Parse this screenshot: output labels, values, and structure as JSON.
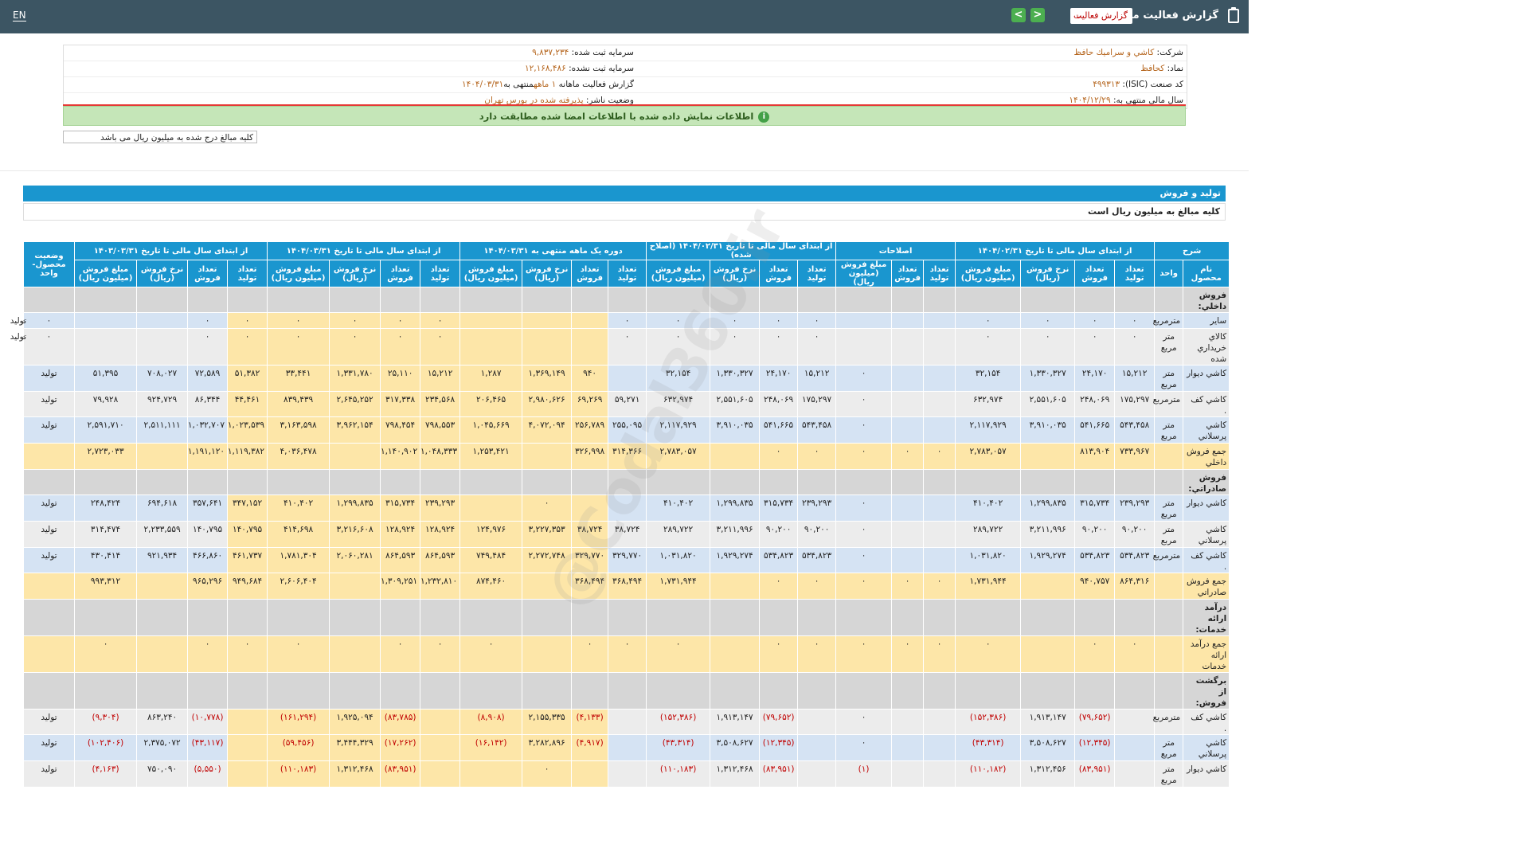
{
  "topbar": {
    "lang": "EN",
    "title": "گزارش فعالیت ماهانه",
    "select_value": "گزارش فعالیت",
    "prev_glyph": "<",
    "next_glyph": ">"
  },
  "info": {
    "company_label": "شرکت:",
    "company": "كاشي و سراميك حافظ",
    "symbol_label": "نماد:",
    "symbol": "کحافظ",
    "isic_label": "کد صنعت (ISIC):",
    "isic": "۴۹۹۳۱۳",
    "fy_label": "سال مالی منتهی به:",
    "fy": "۱۴۰۴/۱۲/۲۹",
    "cap_label": "سرمایه ثبت شده:",
    "cap": "۹,۸۳۷,۲۳۴",
    "uncap_label": "سرمایه ثبت نشده:",
    "uncap": "۱۲,۱۶۸,۴۸۶",
    "report_label": "گزارش فعالیت ماهانه",
    "report_val": "۱ ماهه",
    "report_mid": "منتهی به",
    "report_date": "۱۴۰۴/۰۳/۳۱",
    "status_label": "وضعیت ناشر:",
    "status": "پذیرفته شده در بورس تهران"
  },
  "notice": "اطلاعات نمایش داده شده با اطلاعات امضا شده مطابقت دارد",
  "unit_note": "کلیه مبالغ درج شده به میلیون ریال می باشد",
  "section": {
    "title": "تولید و فروش",
    "subtitle": "کلیه مبالغ به میلیون ریال است"
  },
  "watermark": "@Codal360.ir",
  "table": {
    "groups": [
      "شرح",
      "از ابتدای سال مالی تا تاریخ ۱۴۰۴/۰۲/۳۱",
      "اصلاحات",
      "از ابتدای سال مالی تا تاریخ ۱۴۰۴/۰۲/۳۱ (اصلاح شده)",
      "دوره یک ماهه منتهی به ۱۴۰۴/۰۳/۳۱",
      "از ابتدای سال مالی تا تاریخ ۱۴۰۴/۰۳/۳۱",
      "از ابتدای سال مالی تا تاریخ ۱۴۰۳/۰۳/۳۱",
      "وضعیت محصول-واحد"
    ],
    "subheaders": {
      "name": "نام محصول",
      "unit": "واحد",
      "prod": "تعداد تولید",
      "sales": "تعداد فروش",
      "rate": "نرخ فروش (ریال)",
      "amount": "مبلغ فروش (میلیون ریال)"
    },
    "rows": [
      {
        "t": "sect",
        "name": "فروش داخلي:"
      },
      {
        "t": "item",
        "bg": "blue",
        "name": "ساير",
        "unit": "مترمربع",
        "v": [
          "٠",
          "٠",
          "٠",
          "٠",
          "",
          "",
          "",
          "٠",
          "٠",
          "٠",
          "٠",
          "٠",
          "",
          "",
          "",
          "٠",
          "٠",
          "٠",
          "٠",
          "٠",
          "٠",
          "",
          "",
          "٠",
          "٠"
        ],
        "status": "تولید"
      },
      {
        "t": "item",
        "bg": "grey",
        "name": "كالاي خريداري شده",
        "unit": "متر مربع",
        "v": [
          "٠",
          "٠",
          "٠",
          "٠",
          "",
          "",
          "",
          "٠",
          "٠",
          "٠",
          "٠",
          "٠",
          "",
          "",
          "",
          "٠",
          "٠",
          "٠",
          "٠",
          "٠",
          "٠",
          "",
          "",
          "٠",
          "٠"
        ],
        "status": "تولید"
      },
      {
        "t": "item",
        "bg": "blue",
        "name": "كاشي ديوار",
        "unit": "متر مربع",
        "v": [
          "۱۵,۲۱۲",
          "۲۴,۱۷۰",
          "۱,۳۳۰,۳۲۷",
          "۳۲,۱۵۴",
          "",
          "",
          "٠",
          "۱۵,۲۱۲",
          "۲۴,۱۷۰",
          "۱,۳۳۰,۳۲۷",
          "۳۲,۱۵۴",
          "",
          "۹۴۰",
          "۱,۳۶۹,۱۴۹",
          "۱,۲۸۷",
          "۱۵,۲۱۲",
          "۲۵,۱۱۰",
          "۱,۳۳۱,۷۸۰",
          "۳۳,۴۴۱",
          "۵۱,۳۸۲",
          "۷۲,۵۸۹",
          "۷۰۸,۰۲۷",
          "۵۱,۳۹۵"
        ],
        "status": "تولید"
      },
      {
        "t": "item",
        "bg": "grey",
        "name": "كاشي كف .",
        "unit": "مترمربع",
        "v": [
          "۱۷۵,۲۹۷",
          "۲۴۸,۰۶۹",
          "۲,۵۵۱,۶۰۵",
          "۶۳۲,۹۷۴",
          "",
          "",
          "٠",
          "۱۷۵,۲۹۷",
          "۲۴۸,۰۶۹",
          "۲,۵۵۱,۶۰۵",
          "۶۳۲,۹۷۴",
          "۵۹,۲۷۱",
          "۶۹,۲۶۹",
          "۲,۹۸۰,۶۲۶",
          "۲۰۶,۴۶۵",
          "۲۳۴,۵۶۸",
          "۳۱۷,۳۳۸",
          "۲,۶۴۵,۲۵۲",
          "۸۳۹,۴۳۹",
          "۴۴,۴۶۱",
          "۸۶,۳۴۴",
          "۹۲۴,۷۲۹",
          "۷۹,۹۲۸"
        ],
        "status": "تولید"
      },
      {
        "t": "item",
        "bg": "blue",
        "name": "كاشي پرسلاني",
        "unit": "متر مربع",
        "v": [
          "۵۴۳,۴۵۸",
          "۵۴۱,۶۶۵",
          "۳,۹۱۰,۰۳۵",
          "۲,۱۱۷,۹۲۹",
          "",
          "",
          "٠",
          "۵۴۳,۴۵۸",
          "۵۴۱,۶۶۵",
          "۳,۹۱۰,۰۳۵",
          "۲,۱۱۷,۹۲۹",
          "۲۵۵,۰۹۵",
          "۲۵۶,۷۸۹",
          "۴,۰۷۲,۰۹۴",
          "۱,۰۴۵,۶۶۹",
          "۷۹۸,۵۵۳",
          "۷۹۸,۴۵۴",
          "۳,۹۶۲,۱۵۴",
          "۳,۱۶۳,۵۹۸",
          "۱,۰۲۳,۵۳۹",
          "۱,۰۳۲,۷۰۷",
          "۲,۵۱۱,۱۱۱",
          "۲,۵۹۱,۷۱۰"
        ],
        "status": "تولید"
      },
      {
        "t": "sum",
        "name": "جمع فروش داخلي",
        "unit": "",
        "v": [
          "۷۳۳,۹۶۷",
          "۸۱۳,۹۰۴",
          "",
          "۲,۷۸۳,۰۵۷",
          "٠",
          "٠",
          "٠",
          "٠",
          "٠",
          "",
          "۲,۷۸۳,۰۵۷",
          "۳۱۴,۳۶۶",
          "۳۲۶,۹۹۸",
          "",
          "۱,۲۵۳,۴۲۱",
          "۱,۰۴۸,۳۳۳",
          "۱,۱۴۰,۹۰۲",
          "",
          "۴,۰۳۶,۴۷۸",
          "۱,۱۱۹,۳۸۲",
          "۱,۱۹۱,۱۲۰",
          "",
          "۲,۷۲۳,۰۳۳"
        ],
        "status": ""
      },
      {
        "t": "sect",
        "name": "فروش صادراتي:"
      },
      {
        "t": "item",
        "bg": "blue",
        "name": "كاشي ديوار",
        "unit": "متر مربع",
        "v": [
          "۲۳۹,۲۹۳",
          "۳۱۵,۷۳۴",
          "۱,۲۹۹,۸۳۵",
          "۴۱۰,۴۰۲",
          "",
          "",
          "٠",
          "۲۳۹,۲۹۳",
          "۳۱۵,۷۳۴",
          "۱,۲۹۹,۸۳۵",
          "۴۱۰,۴۰۲",
          "",
          "",
          "٠",
          "",
          "۲۳۹,۲۹۳",
          "۳۱۵,۷۳۴",
          "۱,۲۹۹,۸۳۵",
          "۴۱۰,۴۰۲",
          "۳۴۷,۱۵۲",
          "۳۵۷,۶۴۱",
          "۶۹۴,۶۱۸",
          "۲۴۸,۴۲۴"
        ],
        "status": "تولید"
      },
      {
        "t": "item",
        "bg": "grey",
        "name": "كاشي پرسلاني",
        "unit": "متر مربع",
        "v": [
          "۹۰,۲۰۰",
          "۹۰,۲۰۰",
          "۳,۲۱۱,۹۹۶",
          "۲۸۹,۷۲۲",
          "",
          "",
          "٠",
          "۹۰,۲۰۰",
          "۹۰,۲۰۰",
          "۳,۲۱۱,۹۹۶",
          "۲۸۹,۷۲۲",
          "۳۸,۷۲۴",
          "۳۸,۷۲۴",
          "۳,۲۲۷,۳۵۳",
          "۱۲۴,۹۷۶",
          "۱۲۸,۹۲۴",
          "۱۲۸,۹۲۴",
          "۳,۲۱۶,۶۰۸",
          "۴۱۴,۶۹۸",
          "۱۴۰,۷۹۵",
          "۱۴۰,۷۹۵",
          "۲,۲۳۳,۵۵۹",
          "۳۱۴,۴۷۴"
        ],
        "status": "تولید"
      },
      {
        "t": "item",
        "bg": "blue",
        "name": "كاشي كف .",
        "unit": "مترمربع",
        "v": [
          "۵۳۴,۸۲۳",
          "۵۳۴,۸۲۳",
          "۱,۹۲۹,۲۷۴",
          "۱,۰۳۱,۸۲۰",
          "",
          "",
          "٠",
          "۵۳۴,۸۲۳",
          "۵۳۴,۸۲۳",
          "۱,۹۲۹,۲۷۴",
          "۱,۰۳۱,۸۲۰",
          "۳۲۹,۷۷۰",
          "۳۲۹,۷۷۰",
          "۲,۲۷۲,۷۴۸",
          "۷۴۹,۴۸۴",
          "۸۶۴,۵۹۳",
          "۸۶۴,۵۹۳",
          "۲,۰۶۰,۲۸۱",
          "۱,۷۸۱,۳۰۴",
          "۴۶۱,۷۳۷",
          "۴۶۶,۸۶۰",
          "۹۲۱,۹۳۴",
          "۴۳۰,۴۱۴"
        ],
        "status": "تولید"
      },
      {
        "t": "sum",
        "name": "جمع فروش صادراتي",
        "unit": "",
        "v": [
          "۸۶۴,۳۱۶",
          "۹۴۰,۷۵۷",
          "",
          "۱,۷۳۱,۹۴۴",
          "٠",
          "٠",
          "٠",
          "٠",
          "٠",
          "",
          "۱,۷۳۱,۹۴۴",
          "۳۶۸,۴۹۴",
          "۳۶۸,۴۹۴",
          "",
          "۸۷۴,۴۶۰",
          "۱,۲۳۲,۸۱۰",
          "۱,۳۰۹,۲۵۱",
          "",
          "۲,۶۰۶,۴۰۴",
          "۹۴۹,۶۸۴",
          "۹۶۵,۲۹۶",
          "",
          "۹۹۳,۳۱۲"
        ],
        "status": ""
      },
      {
        "t": "sect",
        "name": "درآمد ارائه خدمات:"
      },
      {
        "t": "sum",
        "name": "جمع درآمد ارائه خدمات",
        "unit": "",
        "v": [
          "٠",
          "٠",
          "",
          "٠",
          "٠",
          "٠",
          "٠",
          "٠",
          "٠",
          "",
          "٠",
          "٠",
          "٠",
          "",
          "٠",
          "٠",
          "٠",
          "",
          "٠",
          "٠",
          "٠",
          "",
          "٠"
        ],
        "status": ""
      },
      {
        "t": "sect",
        "name": "برگشت از فروش:"
      },
      {
        "t": "item",
        "bg": "grey",
        "name": "كاشي كف .",
        "unit": "مترمربع",
        "v": [
          "",
          "(۷۹,۶۵۲)",
          "۱,۹۱۳,۱۴۷",
          "(۱۵۲,۳۸۶)",
          "",
          "",
          "٠",
          "",
          "(۷۹,۶۵۲)",
          "۱,۹۱۳,۱۴۷",
          "(۱۵۲,۳۸۶)",
          "",
          "(۴,۱۳۳)",
          "۲,۱۵۵,۳۳۵",
          "(۸,۹۰۸)",
          "",
          "(۸۳,۷۸۵)",
          "۱,۹۲۵,۰۹۴",
          "(۱۶۱,۲۹۴)",
          "",
          "(۱۰,۷۷۸)",
          "۸۶۳,۲۴۰",
          "(۹,۳۰۴)"
        ],
        "status": "تولید"
      },
      {
        "t": "item",
        "bg": "blue",
        "name": "كاشي پرسلاني",
        "unit": "متر مربع",
        "v": [
          "",
          "(۱۲,۳۴۵)",
          "۳,۵۰۸,۶۲۷",
          "(۴۳,۳۱۴)",
          "",
          "",
          "٠",
          "",
          "(۱۲,۳۴۵)",
          "۳,۵۰۸,۶۲۷",
          "(۴۳,۳۱۴)",
          "",
          "(۴,۹۱۷)",
          "۳,۲۸۲,۸۹۶",
          "(۱۶,۱۴۲)",
          "",
          "(۱۷,۲۶۲)",
          "۳,۴۴۴,۳۲۹",
          "(۵۹,۴۵۶)",
          "",
          "(۴۳,۱۱۷)",
          "۲,۳۷۵,۰۷۲",
          "(۱۰۲,۴۰۶)"
        ],
        "status": "تولید"
      },
      {
        "t": "item",
        "bg": "grey",
        "name": "كاشي ديوار",
        "unit": "متر مربع",
        "v": [
          "",
          "(۸۳,۹۵۱)",
          "۱,۳۱۲,۴۵۶",
          "(۱۱۰,۱۸۲)",
          "",
          "",
          "(۱)",
          "",
          "(۸۳,۹۵۱)",
          "۱,۳۱۲,۴۶۸",
          "(۱۱۰,۱۸۳)",
          "",
          "",
          "٠",
          "",
          "",
          "(۸۳,۹۵۱)",
          "۱,۳۱۲,۴۶۸",
          "(۱۱۰,۱۸۳)",
          "",
          "(۵,۵۵۰)",
          "۷۵۰,۰۹۰",
          "(۴,۱۶۳)"
        ],
        "status": "تولید"
      }
    ]
  }
}
